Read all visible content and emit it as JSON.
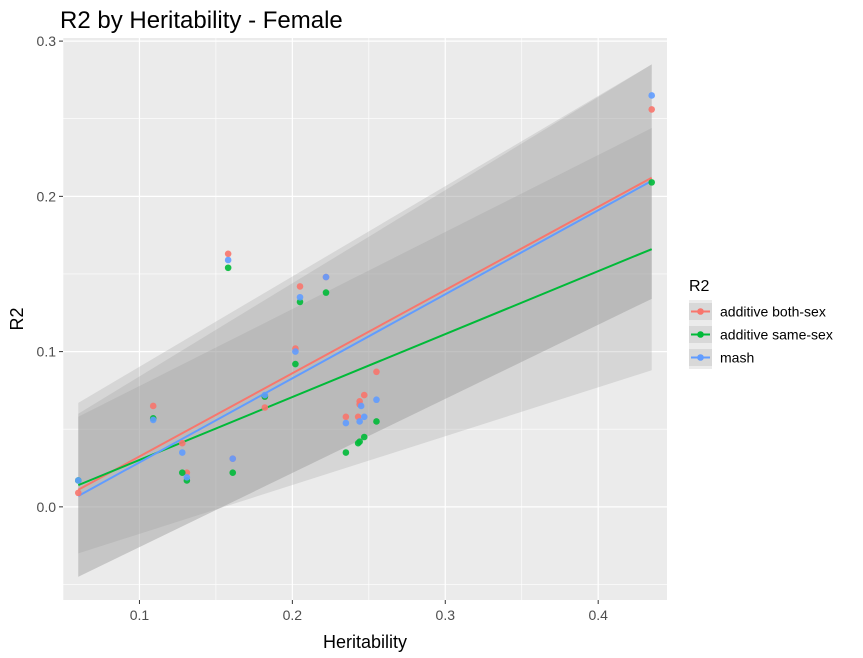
{
  "chart_data": {
    "type": "scatter",
    "title": "R2 by Heritability - Female",
    "xlabel": "Heritability",
    "ylabel": "R2",
    "xlim": [
      0.05,
      0.445
    ],
    "ylim": [
      -0.06,
      0.302
    ],
    "x_ticks": [
      0.1,
      0.2,
      0.3,
      0.4
    ],
    "x_tick_labels": [
      "0.1",
      "0.2",
      "0.3",
      "0.4"
    ],
    "y_ticks": [
      0.0,
      0.1,
      0.2,
      0.3
    ],
    "y_tick_labels": [
      "0.0",
      "0.1",
      "0.2",
      "0.3"
    ],
    "grid": true,
    "legend_title": "R2",
    "legend_position": "right",
    "series": [
      {
        "name": "additive both-sex",
        "color": "#F8766D",
        "x": [
          0.06,
          0.109,
          0.128,
          0.131,
          0.158,
          0.161,
          0.182,
          0.182,
          0.202,
          0.205,
          0.222,
          0.235,
          0.243,
          0.244,
          0.244,
          0.247,
          0.255,
          0.435
        ],
        "y": [
          0.009,
          0.065,
          0.041,
          0.022,
          0.163,
          0.031,
          0.064,
          0.071,
          0.102,
          0.142,
          0.148,
          0.058,
          0.058,
          0.066,
          0.068,
          0.072,
          0.087,
          0.256
        ],
        "fit": {
          "x": [
            0.06,
            0.435
          ],
          "y": [
            0.011,
            0.212
          ],
          "ci_lower": [
            -0.045,
            0.134
          ],
          "ci_upper": [
            0.067,
            0.285
          ]
        }
      },
      {
        "name": "additive same-sex",
        "color": "#00BA38",
        "x": [
          0.06,
          0.109,
          0.128,
          0.131,
          0.158,
          0.161,
          0.182,
          0.202,
          0.205,
          0.222,
          0.235,
          0.243,
          0.244,
          0.247,
          0.255,
          0.435
        ],
        "y": [
          0.017,
          0.057,
          0.022,
          0.017,
          0.154,
          0.022,
          0.071,
          0.092,
          0.132,
          0.138,
          0.035,
          0.041,
          0.042,
          0.045,
          0.055,
          0.209
        ],
        "fit": {
          "x": [
            0.06,
            0.435
          ],
          "y": [
            0.014,
            0.166
          ],
          "ci_lower": [
            -0.03,
            0.088
          ],
          "ci_upper": [
            0.058,
            0.244
          ]
        }
      },
      {
        "name": "mash",
        "color": "#619CFF",
        "x": [
          0.06,
          0.109,
          0.128,
          0.131,
          0.158,
          0.161,
          0.182,
          0.202,
          0.205,
          0.222,
          0.235,
          0.244,
          0.245,
          0.247,
          0.255,
          0.435
        ],
        "y": [
          0.017,
          0.056,
          0.035,
          0.019,
          0.159,
          0.031,
          0.072,
          0.1,
          0.135,
          0.148,
          0.054,
          0.055,
          0.065,
          0.058,
          0.069,
          0.265
        ],
        "fit": {
          "x": [
            0.06,
            0.435
          ],
          "y": [
            0.007,
            0.21
          ],
          "ci_lower": [
            -0.045,
            0.134
          ],
          "ci_upper": [
            0.06,
            0.285
          ]
        }
      }
    ]
  }
}
